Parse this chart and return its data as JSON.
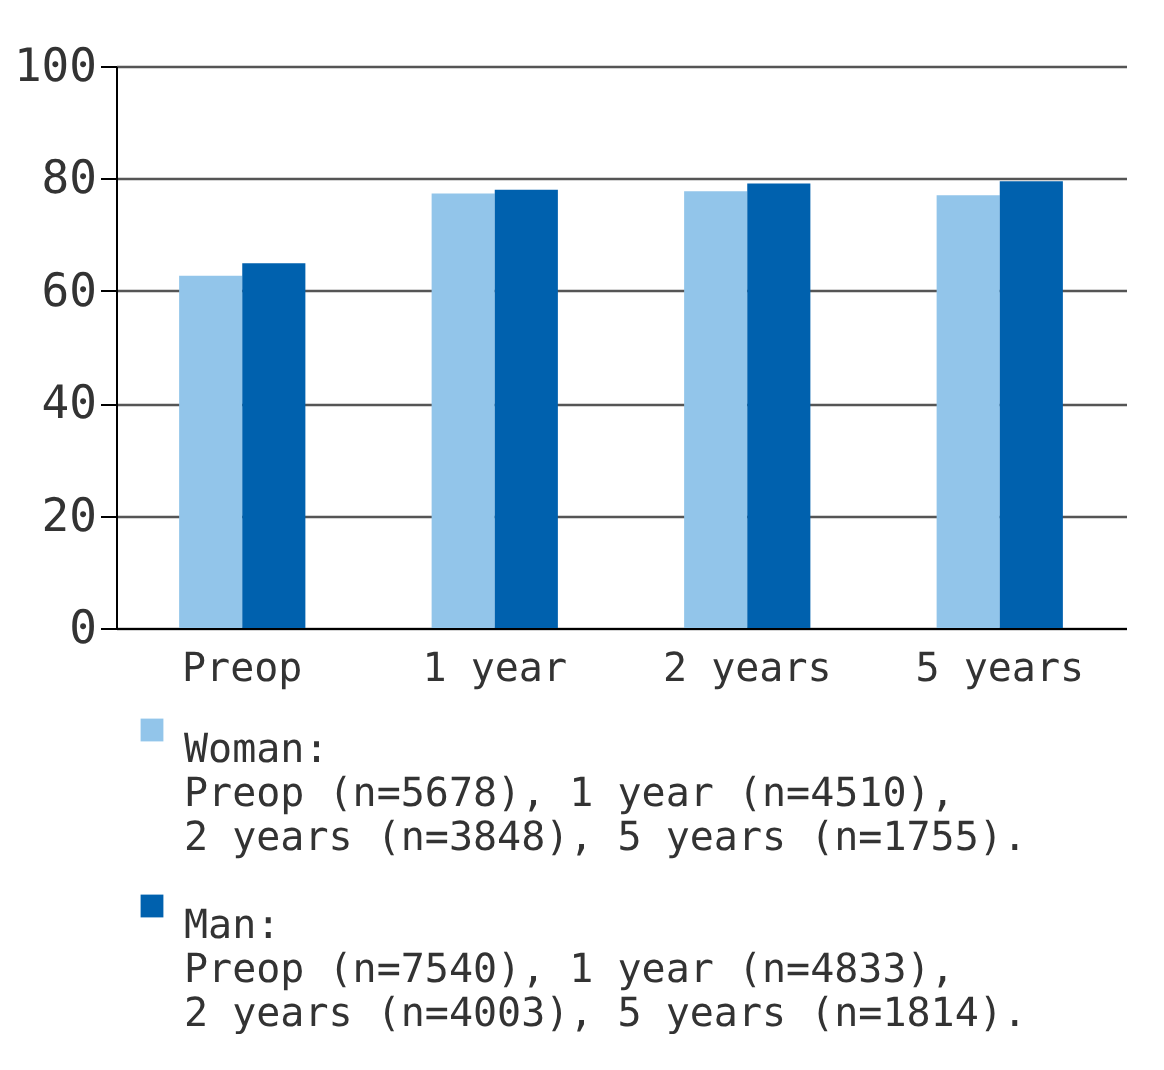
{
  "chart_data": {
    "type": "bar",
    "categories": [
      "Preop",
      "1 year",
      "2 years",
      "5 years"
    ],
    "series": [
      {
        "name": "Woman:",
        "color": "#92c5ea",
        "values": [
          62.7,
          77.3,
          77.7,
          77.0
        ]
      },
      {
        "name": "Man:",
        "color": "#0061ae",
        "values": [
          64.9,
          78.0,
          79.1,
          79.5
        ]
      }
    ],
    "ylim": [
      0,
      100
    ],
    "yticks": [
      0,
      20,
      40,
      60,
      80,
      100
    ],
    "grid": "y",
    "legend": "bottom",
    "annotations": [
      "Preop (n=5678), 1 year (n=4510), 2 years (n=3848), 5 years (n=1755).",
      "Preop (n=7540), 1 year (n=4833), 2 years (n=4003), 5 years (n=1814)."
    ]
  }
}
